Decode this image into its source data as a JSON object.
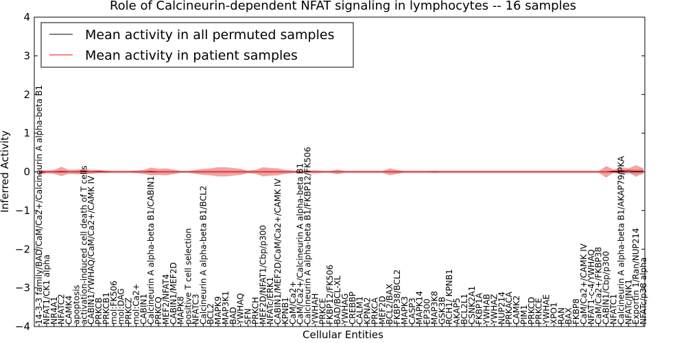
{
  "chart_data": {
    "type": "line",
    "title": "Role of Calcineurin-dependent NFAT signaling in lymphocytes -- 16 samples",
    "xlabel": "Cellular Entities",
    "ylabel": "Inferred Activity",
    "ylim": [
      -4,
      4
    ],
    "yticks": [
      "4",
      "3",
      "2",
      "1",
      "0",
      "−1",
      "−2",
      "−3",
      "−4"
    ],
    "legend_position": "top-left",
    "categories": [
      "14-3-3 family/BAD/CaM/Ca2+/Calcineurin A alpha-beta B1",
      "NFAT1/CK1 alpha",
      "NR4A1",
      "NFATC2",
      "CAMK4",
      "apoptosis",
      "activation-induced cell death of T cells",
      "CABIN1/YWHAQ/CaM/Ca2+/CAMK IV",
      "PRKCB",
      "PRKCB1",
      "mol:FK506",
      "mol:DAG",
      "PRKCZ",
      "mol:Ca2+",
      "CABIN1",
      "Calcineurin A alpha-beta B1/CABIN1",
      "PRKCQ",
      "MEF2/NFAT4",
      "CABIN1/MEF2D",
      "MAPK8",
      "positive T cell selection",
      "NFATC3",
      "Calcineurin A alpha-beta B1/BCL2",
      "BCL2",
      "MAPK9",
      "MAP3K1",
      "BAD",
      "YWHAQ",
      "SFN",
      "PRKCH",
      "MEF2D/NFAT1/Cbp/p300",
      "NFATc/ERK1",
      "CABIN1/MEF2D/CaM/Ca2+/CAMK IV",
      "KPNB1",
      "CaM/Ca2+",
      "CaM/Ca2+/Calcineurin A alpha-beta B1",
      "Calcineurin A alpha-beta B1/FKBP12/FK506",
      "YWHAH",
      "PRKCE",
      "FKBP12/FK506",
      "BAD/BCL-XL",
      "YWHAG",
      "CREBBP",
      "CALM1",
      "KPNA2",
      "PRKCA",
      "MEF2D",
      "BCL2/BAX",
      "FKBP38/BCL2",
      "MAPK3",
      "CASP3",
      "MAPK14",
      "EP300",
      "MAP3K8",
      "GSK3B",
      "RCH1/ KPNB1",
      "AKAP5",
      "BCL2L1",
      "CSNK2A1",
      "FKBP1A",
      "YWHAB",
      "YWHAZ",
      "NUP214",
      "PRKACA",
      "CAMK2",
      "PIM1",
      "PRKCD",
      "PRKCE",
      "YWHAE",
      "XPO1",
      "RAN",
      "BAX",
      "FKBP8",
      "CaM/Ca2+/CAMK IV",
      "NFAT1-c-4/YWHAQ",
      "CaM/Ca2+/FKBP38",
      "CABIN1/Cbp/p300",
      "NFATC1",
      "Calcineurin A alpha-beta B1/AKAP79/PKA",
      "NFATc/JNK1",
      "Exportin 1/Ran/NUP214",
      "NFATc/p38 alpha"
    ],
    "series": [
      {
        "name": "Mean activity in all permuted samples",
        "color": "#000000",
        "values": [
          0.0,
          0.0,
          0.0,
          0.0,
          0.0,
          0.0,
          0.0,
          0.0,
          0.0,
          0.0,
          0.0,
          0.0,
          0.0,
          0.0,
          0.0,
          0.0,
          0.0,
          0.0,
          0.0,
          0.0,
          0.0,
          0.0,
          0.0,
          0.0,
          0.0,
          0.0,
          0.0,
          0.0,
          0.0,
          0.0,
          0.0,
          0.0,
          0.0,
          0.0,
          0.0,
          0.0,
          0.0,
          0.0,
          0.0,
          0.0,
          0.0,
          0.0,
          0.0,
          0.0,
          0.0,
          0.0,
          0.0,
          0.0,
          0.0,
          0.0,
          0.0,
          0.0,
          0.0,
          0.0,
          0.0,
          0.0,
          0.0,
          0.0,
          0.0,
          0.0,
          0.0,
          0.0,
          0.0,
          0.0,
          0.0,
          0.0,
          0.0,
          0.0,
          0.0,
          0.0,
          0.0,
          0.0,
          0.0,
          0.0,
          0.0,
          0.0,
          0.0,
          0.0,
          0.0,
          0.0,
          0.0,
          0.0
        ],
        "spread": [
          0.04,
          0.04,
          0.04,
          0.04,
          0.04,
          0.04,
          0.04,
          0.04,
          0.04,
          0.04,
          0.04,
          0.04,
          0.04,
          0.04,
          0.04,
          0.04,
          0.04,
          0.04,
          0.04,
          0.04,
          0.04,
          0.04,
          0.04,
          0.04,
          0.04,
          0.04,
          0.04,
          0.04,
          0.04,
          0.04,
          0.04,
          0.04,
          0.04,
          0.04,
          0.04,
          0.04,
          0.04,
          0.04,
          0.04,
          0.04,
          0.04,
          0.04,
          0.04,
          0.04,
          0.04,
          0.04,
          0.04,
          0.04,
          0.04,
          0.04,
          0.04,
          0.04,
          0.04,
          0.04,
          0.04,
          0.04,
          0.04,
          0.04,
          0.04,
          0.04,
          0.04,
          0.04,
          0.04,
          0.04,
          0.04,
          0.04,
          0.04,
          0.04,
          0.04,
          0.04,
          0.04,
          0.04,
          0.04,
          0.04,
          0.04,
          0.04,
          0.04,
          0.04,
          0.05,
          0.07,
          0.06,
          0.07
        ]
      },
      {
        "name": "Mean activity in patient samples",
        "color": "#ff0000",
        "values": [
          -0.02,
          0.0,
          0.0,
          0.01,
          0.0,
          0.0,
          0.01,
          0.0,
          0.01,
          0.0,
          0.0,
          0.0,
          0.0,
          0.0,
          0.0,
          0.01,
          0.0,
          0.0,
          0.0,
          0.0,
          0.0,
          0.0,
          0.0,
          0.0,
          0.0,
          0.0,
          0.0,
          0.0,
          0.0,
          0.0,
          0.0,
          0.0,
          0.0,
          0.0,
          0.0,
          0.0,
          0.0,
          0.0,
          0.0,
          0.0,
          0.0,
          0.0,
          0.0,
          0.0,
          0.0,
          0.0,
          0.0,
          0.0,
          0.0,
          0.0,
          0.0,
          0.0,
          0.0,
          0.0,
          0.0,
          0.0,
          0.0,
          0.0,
          0.0,
          0.0,
          0.0,
          0.0,
          0.0,
          0.0,
          0.0,
          0.0,
          0.0,
          0.0,
          0.0,
          0.0,
          0.0,
          0.0,
          0.0,
          0.0,
          0.0,
          0.0,
          0.0,
          0.02,
          0.02,
          0.04,
          0.02,
          0.03
        ],
        "spread": [
          0.07,
          0.03,
          0.05,
          0.12,
          0.05,
          0.06,
          0.07,
          0.05,
          0.04,
          0.03,
          0.02,
          0.02,
          0.02,
          0.03,
          0.05,
          0.1,
          0.08,
          0.09,
          0.06,
          0.02,
          0.02,
          0.05,
          0.08,
          0.09,
          0.12,
          0.12,
          0.1,
          0.08,
          0.03,
          0.05,
          0.12,
          0.1,
          0.09,
          0.05,
          0.03,
          0.02,
          0.03,
          0.04,
          0.02,
          0.02,
          0.06,
          0.02,
          0.02,
          0.02,
          0.02,
          0.02,
          0.02,
          0.09,
          0.05,
          0.02,
          0.02,
          0.02,
          0.02,
          0.03,
          0.02,
          0.02,
          0.02,
          0.02,
          0.02,
          0.02,
          0.02,
          0.02,
          0.02,
          0.02,
          0.02,
          0.02,
          0.02,
          0.02,
          0.02,
          0.02,
          0.02,
          0.02,
          0.02,
          0.02,
          0.02,
          0.02,
          0.15,
          0.04,
          0.1,
          0.05,
          0.15,
          0.06
        ]
      }
    ]
  }
}
